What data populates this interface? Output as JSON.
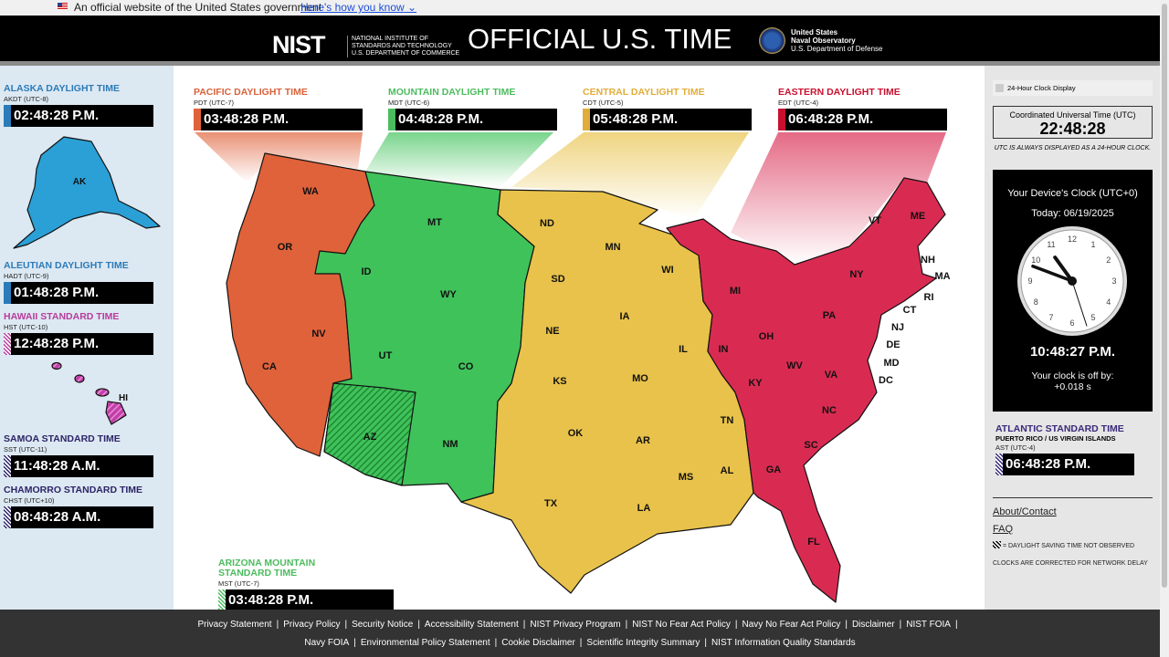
{
  "banner": {
    "text": "An official website of the United States government",
    "link": "Here's how you know"
  },
  "header": {
    "nist_logo": "NIST",
    "nist_sub": [
      "NATIONAL INSTITUTE OF",
      "STANDARDS AND TECHNOLOGY",
      "U.S. DEPARTMENT OF COMMERCE"
    ],
    "title": "OFFICIAL U.S. TIME",
    "usno": [
      "United States",
      "Naval Observatory",
      "U.S. Department of Defense"
    ]
  },
  "zones": {
    "alaska": {
      "name": "ALASKA DAYLIGHT TIME",
      "abbr": "AKDT (UTC-8)",
      "time": "02:48:28 P.M.",
      "color": "#2b7bb9"
    },
    "aleutian": {
      "name": "ALEUTIAN DAYLIGHT TIME",
      "abbr": "HADT (UTC-9)",
      "time": "01:48:28 P.M.",
      "color": "#2b7bb9"
    },
    "hawaii": {
      "name": "HAWAII STANDARD TIME",
      "abbr": "HST (UTC-10)",
      "time": "12:48:28 P.M.",
      "color": "#b73c9c"
    },
    "samoa": {
      "name": "SAMOA STANDARD TIME",
      "abbr": "SST (UTC-11)",
      "time": "11:48:28 A.M.",
      "color": "#2d2566"
    },
    "chamorro": {
      "name": "CHAMORRO STANDARD TIME",
      "abbr": "CHST (UTC+10)",
      "time": "08:48:28 A.M.",
      "color": "#2d2566"
    },
    "pacific": {
      "name": "PACIFIC DAYLIGHT TIME",
      "abbr": "PDT (UTC-7)",
      "time": "03:48:28 P.M.",
      "color": "#e0623a"
    },
    "mountain": {
      "name": "MOUNTAIN DAYLIGHT TIME",
      "abbr": "MDT (UTC-6)",
      "time": "04:48:28 P.M.",
      "color": "#3fc25a"
    },
    "central": {
      "name": "CENTRAL DAYLIGHT TIME",
      "abbr": "CDT (UTC-5)",
      "time": "05:48:28 P.M.",
      "color": "#e8c24a"
    },
    "eastern": {
      "name": "EASTERN DAYLIGHT TIME",
      "abbr": "EDT (UTC-4)",
      "time": "06:48:28 P.M.",
      "color": "#d92b52"
    },
    "arizona": {
      "name": "ARIZONA MOUNTAIN STANDARD TIME",
      "abbr": "MST (UTC-7)",
      "time": "03:48:28 P.M.",
      "color": "#3fc25a"
    },
    "atlantic": {
      "name": "ATLANTIC STANDARD TIME",
      "sub": "PUERTO RICO / US VIRGIN ISLANDS",
      "abbr": "AST (UTC-4)",
      "time": "06:48:28 P.M.",
      "color": "#3a2a7a"
    }
  },
  "map_labels": [
    "AK",
    "HI",
    "WA",
    "OR",
    "CA",
    "NV",
    "ID",
    "MT",
    "WY",
    "UT",
    "CO",
    "AZ",
    "NM",
    "ND",
    "SD",
    "NE",
    "KS",
    "OK",
    "TX",
    "MN",
    "IA",
    "MO",
    "AR",
    "LA",
    "WI",
    "IL",
    "MS",
    "AL",
    "TN",
    "MI",
    "IN",
    "OH",
    "KY",
    "WV",
    "VA",
    "PA",
    "NY",
    "VT",
    "ME",
    "NH",
    "MA",
    "RI",
    "CT",
    "NJ",
    "DE",
    "MD",
    "DC",
    "NC",
    "SC",
    "GA",
    "FL"
  ],
  "right": {
    "toggle_label": "24-Hour Clock Display",
    "utc_label": "Coordinated Universal Time (UTC)",
    "utc_time": "22:48:28",
    "utc_note": "UTC IS ALWAYS DISPLAYED AS A 24-HOUR CLOCK.",
    "device_title": "Your Device's Clock (UTC+0)",
    "device_date": "Today: 06/19/2025",
    "device_time": "10:48:27 P.M.",
    "offset_label": "Your clock is off by:",
    "offset_value": "+0.018 s",
    "about": "About/Contact",
    "faq": "FAQ",
    "dst_note": "= DAYLIGHT SAVING TIME NOT OBSERVED",
    "network_note": "CLOCKS ARE CORRECTED FOR NETWORK DELAY"
  },
  "analog_clock": {
    "hour": 10,
    "minute": 48,
    "second": 27
  },
  "footer": {
    "row1": [
      "Privacy Statement",
      "Privacy Policy",
      "Security Notice",
      "Accessibility Statement",
      "NIST Privacy Program",
      "NIST No Fear Act Policy",
      "Navy No Fear Act Policy",
      "Disclaimer",
      "NIST FOIA"
    ],
    "row2": [
      "Navy FOIA",
      "Environmental Policy Statement",
      "Cookie Disclaimer",
      "Scientific Integrity Summary",
      "NIST Information Quality Standards"
    ]
  }
}
